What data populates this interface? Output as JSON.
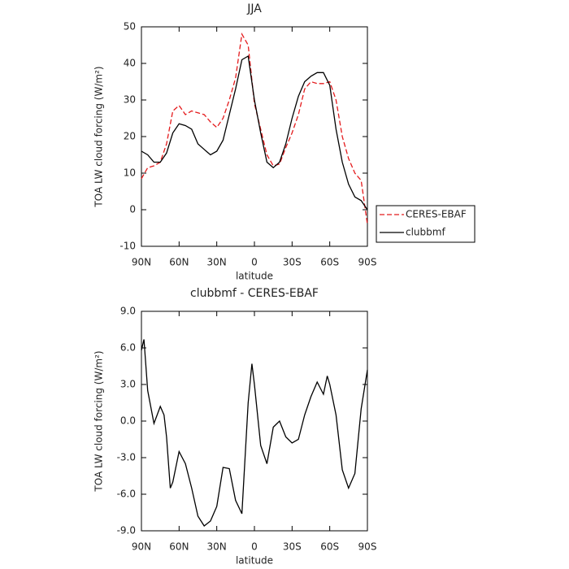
{
  "chart_data": [
    {
      "type": "line",
      "title": "JJA",
      "xlabel": "latitude",
      "ylabel": "TOA LW cloud forcing (W/m²)",
      "x": [
        90,
        85,
        80,
        75,
        70,
        65,
        60,
        55,
        50,
        45,
        40,
        35,
        30,
        25,
        20,
        15,
        10,
        5,
        0,
        -5,
        -10,
        -15,
        -20,
        -25,
        -30,
        -35,
        -40,
        -45,
        -50,
        -55,
        -60,
        -65,
        -70,
        -75,
        -80,
        -85,
        -90
      ],
      "series": [
        {
          "name": "CERES-EBAF",
          "color": "#e41a1c",
          "linestyle": "dashed",
          "values": [
            8.5,
            11.5,
            12,
            13,
            18,
            27,
            28.5,
            26,
            27,
            26.5,
            26,
            24,
            22.5,
            25,
            30,
            36,
            48,
            45,
            29,
            22,
            15,
            12,
            12.5,
            17,
            21,
            26,
            33,
            35,
            34.5,
            34.5,
            35,
            30,
            20,
            14,
            10,
            8,
            -4
          ]
        },
        {
          "name": "clubbmf",
          "color": "#000000",
          "linestyle": "solid",
          "values": [
            16,
            15,
            13,
            13,
            15.5,
            21,
            23.5,
            23,
            22,
            18,
            16.5,
            15,
            16,
            19,
            26,
            33,
            41,
            42,
            30,
            21,
            13,
            11.5,
            13,
            18,
            25,
            31,
            35,
            36.5,
            37.5,
            37.5,
            34,
            22,
            13,
            7,
            3.5,
            2.5,
            0
          ]
        }
      ],
      "xlim": [
        90,
        -90
      ],
      "ylim": [
        -10,
        50
      ],
      "xticks": [
        {
          "value": 90,
          "label": "90N"
        },
        {
          "value": 60,
          "label": "60N"
        },
        {
          "value": 30,
          "label": "30N"
        },
        0,
        {
          "value": -30,
          "label": "30S"
        },
        {
          "value": -60,
          "label": "60S"
        },
        {
          "value": -90,
          "label": "90S"
        }
      ],
      "yticks": [
        -10,
        0,
        10,
        20,
        30,
        40,
        50
      ],
      "legend": "right"
    },
    {
      "type": "line",
      "title": "clubbmf - CERES-EBAF",
      "xlabel": "latitude",
      "ylabel": "TOA LW cloud forcing (W/m²)",
      "x": [
        90,
        88,
        85,
        80,
        75,
        72,
        70,
        67,
        65,
        60,
        55,
        50,
        45,
        40,
        35,
        30,
        25,
        20,
        15,
        10,
        5,
        2,
        0,
        -5,
        -10,
        -15,
        -20,
        -25,
        -30,
        -35,
        -40,
        -45,
        -50,
        -55,
        -58,
        -60,
        -65,
        -70,
        -75,
        -80,
        -85,
        -90
      ],
      "series": [
        {
          "name": "clubbmf - CERES-EBAF",
          "color": "#000000",
          "linestyle": "solid",
          "values": [
            5.8,
            6.7,
            2.5,
            -0.2,
            1.2,
            0.5,
            -1.3,
            -5.5,
            -5.0,
            -2.5,
            -3.5,
            -5.5,
            -7.8,
            -8.6,
            -8.2,
            -7.0,
            -3.8,
            -3.9,
            -6.5,
            -7.6,
            1.5,
            4.7,
            3.0,
            -2.0,
            -3.5,
            -0.5,
            0.0,
            -1.3,
            -1.8,
            -1.5,
            0.5,
            2.0,
            3.2,
            2.2,
            3.7,
            3.0,
            0.5,
            -4.0,
            -5.5,
            -4.3,
            1.0,
            4.2
          ]
        }
      ],
      "xlim": [
        90,
        -90
      ],
      "ylim": [
        -9,
        9
      ],
      "xticks": [
        {
          "value": 90,
          "label": "90N"
        },
        {
          "value": 60,
          "label": "60N"
        },
        {
          "value": 30,
          "label": "30N"
        },
        0,
        {
          "value": -30,
          "label": "30S"
        },
        {
          "value": -60,
          "label": "60S"
        },
        {
          "value": -90,
          "label": "90S"
        }
      ],
      "yticks": [
        {
          "value": -9,
          "label": "-9.0"
        },
        {
          "value": -6,
          "label": "-6.0"
        },
        {
          "value": -3,
          "label": "-3.0"
        },
        {
          "value": 0,
          "label": "0.0"
        },
        {
          "value": 3,
          "label": "3.0"
        },
        {
          "value": 6,
          "label": "6.0"
        },
        {
          "value": 9,
          "label": "9.0"
        }
      ]
    }
  ]
}
